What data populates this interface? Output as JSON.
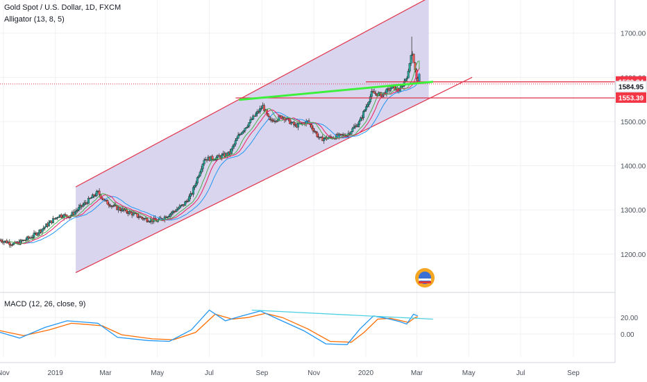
{
  "chart_data": {
    "type": "candlestick",
    "title": "Gold Spot / U.S. Dollar, 1D, FXCM",
    "indicator_label": "Alligator (13, 8, 5)",
    "macd_label": "MACD (12, 26, close, 9)",
    "x_ticks": [
      "Nov",
      "2019",
      "Mar",
      "May",
      "Jul",
      "Sep",
      "Nov",
      "2020",
      "Mar",
      "May",
      "Jul",
      "Sep"
    ],
    "x_range": [
      "2018-10-28",
      "2020-10-20"
    ],
    "y_ticks": [
      "1700.00",
      "1600.00",
      "1500.00",
      "1400.00",
      "1300.00",
      "1200.00"
    ],
    "ylim": [
      1118,
      1775
    ],
    "macd_ticks": [
      "20.00",
      "0.00"
    ],
    "macd_ylim": [
      -28,
      48
    ],
    "price_badges": [
      {
        "text": "1589.84",
        "value": 1589.84,
        "color": "#f23645"
      },
      {
        "text": "1584.95",
        "value": 1584.95,
        "color": "#ffffff"
      },
      {
        "text": "1553.39",
        "value": 1553.39,
        "color": "#f23645"
      }
    ],
    "close_series": [
      [
        "2018-10-28",
        1232
      ],
      [
        "2018-11-15",
        1222
      ],
      [
        "2018-12-05",
        1240
      ],
      [
        "2018-12-20",
        1262
      ],
      [
        "2019-01-05",
        1288
      ],
      [
        "2019-01-18",
        1286
      ],
      [
        "2019-02-05",
        1315
      ],
      [
        "2019-02-20",
        1340
      ],
      [
        "2019-03-01",
        1318
      ],
      [
        "2019-03-15",
        1304
      ],
      [
        "2019-04-01",
        1292
      ],
      [
        "2019-04-15",
        1280
      ],
      [
        "2019-05-01",
        1275
      ],
      [
        "2019-05-15",
        1290
      ],
      [
        "2019-06-01",
        1312
      ],
      [
        "2019-06-10",
        1335
      ],
      [
        "2019-06-25",
        1415
      ],
      [
        "2019-07-10",
        1418
      ],
      [
        "2019-07-25",
        1428
      ],
      [
        "2019-08-05",
        1470
      ],
      [
        "2019-08-20",
        1505
      ],
      [
        "2019-09-02",
        1535
      ],
      [
        "2019-09-10",
        1500
      ],
      [
        "2019-09-25",
        1512
      ],
      [
        "2019-10-10",
        1490
      ],
      [
        "2019-10-25",
        1500
      ],
      [
        "2019-11-08",
        1460
      ],
      [
        "2019-11-25",
        1465
      ],
      [
        "2019-12-10",
        1470
      ],
      [
        "2019-12-25",
        1500
      ],
      [
        "2020-01-08",
        1565
      ],
      [
        "2020-01-20",
        1560
      ],
      [
        "2020-02-01",
        1578
      ],
      [
        "2020-02-10",
        1570
      ],
      [
        "2020-02-20",
        1610
      ],
      [
        "2020-02-24",
        1665
      ],
      [
        "2020-03-01",
        1590
      ],
      [
        "2020-03-05",
        1608
      ]
    ],
    "macd_series": [
      [
        "2018-10-28",
        2
      ],
      [
        "2018-11-20",
        -5
      ],
      [
        "2018-12-20",
        8
      ],
      [
        "2019-01-15",
        16
      ],
      [
        "2019-02-20",
        13
      ],
      [
        "2019-03-15",
        -4
      ],
      [
        "2019-04-20",
        -8
      ],
      [
        "2019-05-15",
        -9
      ],
      [
        "2019-06-10",
        5
      ],
      [
        "2019-07-01",
        29
      ],
      [
        "2019-07-20",
        16
      ],
      [
        "2019-08-05",
        21
      ],
      [
        "2019-08-30",
        28
      ],
      [
        "2019-09-20",
        18
      ],
      [
        "2019-10-20",
        4
      ],
      [
        "2019-11-15",
        -12
      ],
      [
        "2019-12-10",
        -13
      ],
      [
        "2019-12-25",
        6
      ],
      [
        "2020-01-10",
        22
      ],
      [
        "2020-01-25",
        19
      ],
      [
        "2020-02-10",
        15
      ],
      [
        "2020-02-18",
        12
      ],
      [
        "2020-02-26",
        24
      ],
      [
        "2020-03-02",
        22
      ]
    ],
    "signal_series": [
      [
        "2018-10-28",
        4
      ],
      [
        "2018-11-25",
        -2
      ],
      [
        "2018-12-25",
        5
      ],
      [
        "2019-01-20",
        13
      ],
      [
        "2019-02-25",
        10
      ],
      [
        "2019-03-20",
        -1
      ],
      [
        "2019-04-25",
        -6
      ],
      [
        "2019-05-20",
        -7
      ],
      [
        "2019-06-15",
        2
      ],
      [
        "2019-07-08",
        24
      ],
      [
        "2019-07-28",
        18
      ],
      [
        "2019-08-15",
        20
      ],
      [
        "2019-09-05",
        25
      ],
      [
        "2019-09-25",
        20
      ],
      [
        "2019-10-25",
        6
      ],
      [
        "2019-11-20",
        -9
      ],
      [
        "2019-12-15",
        -10
      ],
      [
        "2019-12-30",
        2
      ],
      [
        "2020-01-15",
        18
      ],
      [
        "2020-01-30",
        19
      ],
      [
        "2020-02-12",
        16
      ],
      [
        "2020-02-20",
        14
      ],
      [
        "2020-02-28",
        20
      ],
      [
        "2020-03-02",
        21
      ]
    ],
    "channel": {
      "upper": [
        [
          "2019-01-25",
          1352
        ],
        [
          "2020-03-15",
          1780
        ]
      ],
      "lower": [
        [
          "2019-01-25",
          1158
        ],
        [
          "2020-05-05",
          1600
        ]
      ]
    },
    "green_trendline": [
      [
        "2019-08-05",
        1549
      ],
      [
        "2020-03-20",
        1590
      ]
    ],
    "resistance_lines": [
      {
        "from": "2020-01-01",
        "value": 1589.84
      },
      {
        "from": "2019-08-01",
        "value": 1553.39
      }
    ],
    "macd_trendline": [
      [
        "2019-08-20",
        29
      ],
      [
        "2020-03-20",
        18
      ]
    ],
    "colors": {
      "channel_fill": "#d6d0ec",
      "channel_line": "#e0334a",
      "up_candle": "#26a69a",
      "down_candle": "#ef5350",
      "jaw": "#2196f3",
      "teeth": "#e91e63",
      "lips": "#4caf50",
      "green_line": "#3cf03c",
      "macd_line": "#2196f3",
      "signal_line": "#ff6d00",
      "macd_trend": "#4dd0e1"
    }
  }
}
